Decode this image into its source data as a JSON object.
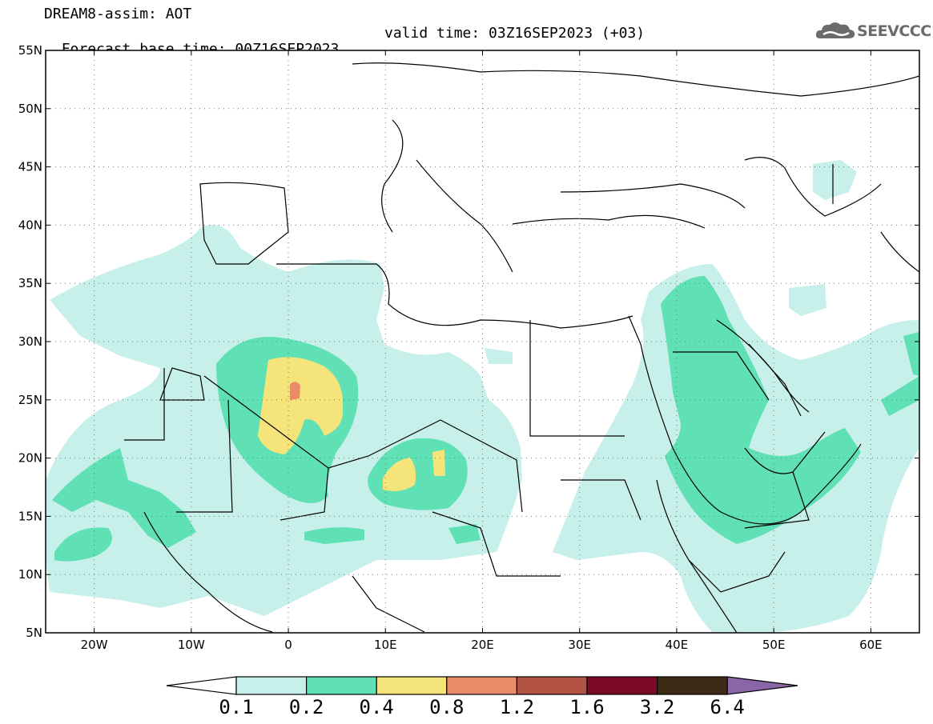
{
  "title": {
    "line1": "DREAM8-assim: AOT",
    "line2_left": "Forecast base time: 00Z16SEP2023",
    "line2_right": "valid time: 03Z16SEP2023 (+03)"
  },
  "logo": {
    "text": "SEEVCCC",
    "icon": "cloud-icon"
  },
  "map": {
    "extent": {
      "lon": [
        -25,
        65
      ],
      "lat": [
        5,
        55
      ]
    },
    "lat_ticks": [
      "55N",
      "50N",
      "45N",
      "40N",
      "35N",
      "30N",
      "25N",
      "20N",
      "15N",
      "10N",
      "5N"
    ],
    "lon_ticks": [
      "20W",
      "10W",
      "0",
      "10E",
      "20E",
      "30E",
      "40E",
      "50E",
      "60E"
    ],
    "grid": "dotted",
    "variable": "AOT"
  },
  "colorbar": {
    "labels": [
      "0.1",
      "0.2",
      "0.4",
      "0.8",
      "1.2",
      "1.6",
      "3.2",
      "6.4"
    ],
    "colors": [
      "#ffffff",
      "#c8f0eb",
      "#5fe0b5",
      "#f5e47a",
      "#eb8c69",
      "#b35345",
      "#7a0a25",
      "#3d2a15",
      "#8a66a8"
    ]
  }
}
